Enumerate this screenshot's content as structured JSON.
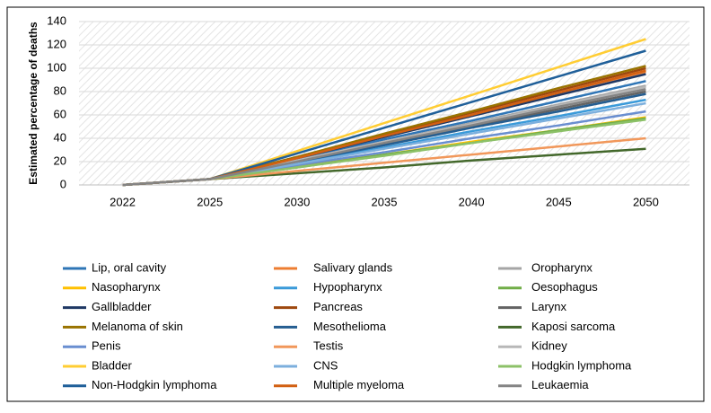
{
  "chart_data": {
    "type": "line",
    "y_label": "Estimated percentage of deaths",
    "categories": [
      "2022",
      "2025",
      "2030",
      "2035",
      "2040",
      "2045",
      "2050"
    ],
    "ylim": [
      0,
      140
    ],
    "yticks": [
      0,
      20,
      40,
      60,
      80,
      100,
      120,
      140
    ],
    "grid": true,
    "legend": "bottom",
    "series": [
      {
        "name": "Lip, oral cavity",
        "color": "#2e75b6",
        "values": [
          0,
          5,
          22,
          39,
          55,
          72,
          89
        ]
      },
      {
        "name": "Salivary glands",
        "color": "#ed7d31",
        "values": [
          0,
          5,
          23,
          42,
          60,
          79,
          97
        ]
      },
      {
        "name": "Oropharynx",
        "color": "#a5a5a5",
        "values": [
          0,
          5,
          21,
          37,
          53,
          69,
          85
        ]
      },
      {
        "name": "Nasopharynx",
        "color": "#ffc000",
        "values": [
          0,
          5,
          16,
          26,
          37,
          47,
          58
        ]
      },
      {
        "name": "Hypopharynx",
        "color": "#3a9ad9",
        "values": [
          0,
          5,
          19,
          32,
          46,
          59,
          73
        ]
      },
      {
        "name": "Oesophagus",
        "color": "#70ad47",
        "values": [
          0,
          5,
          15,
          26,
          36,
          47,
          57
        ]
      },
      {
        "name": "Gallbladder",
        "color": "#1f3864",
        "values": [
          0,
          5,
          23,
          41,
          59,
          77,
          95
        ]
      },
      {
        "name": "Pancreas",
        "color": "#9e480e",
        "values": [
          0,
          5,
          24,
          43,
          62,
          81,
          100
        ]
      },
      {
        "name": "Larynx",
        "color": "#636363",
        "values": [
          0,
          5,
          20,
          35,
          50,
          65,
          80
        ]
      },
      {
        "name": "Melanoma of skin",
        "color": "#997300",
        "values": [
          0,
          5,
          24,
          44,
          63,
          83,
          102
        ]
      },
      {
        "name": "Mesothelioma",
        "color": "#255e91",
        "values": [
          0,
          5,
          20,
          34,
          49,
          63,
          78
        ]
      },
      {
        "name": "Kaposi sarcoma",
        "color": "#43682b",
        "values": [
          0,
          5,
          10,
          15,
          21,
          26,
          31
        ]
      },
      {
        "name": "Penis",
        "color": "#698ed0",
        "values": [
          0,
          5,
          17,
          28,
          40,
          51,
          63
        ]
      },
      {
        "name": "Testis",
        "color": "#f1975a",
        "values": [
          0,
          5,
          12,
          19,
          26,
          33,
          40
        ]
      },
      {
        "name": "Kidney",
        "color": "#b7b7b7",
        "values": [
          0,
          5,
          21,
          37,
          52,
          68,
          84
        ]
      },
      {
        "name": "Bladder",
        "color": "#ffcd33",
        "values": [
          0,
          5,
          29,
          53,
          77,
          101,
          125
        ]
      },
      {
        "name": "CNS",
        "color": "#7cafdd",
        "values": [
          0,
          5,
          18,
          31,
          44,
          57,
          70
        ]
      },
      {
        "name": "Hodgkin lymphoma",
        "color": "#8cc168",
        "values": [
          0,
          5,
          15,
          25,
          36,
          46,
          56
        ]
      },
      {
        "name": "Non-Hodgkin lymphoma",
        "color": "#1f5f99",
        "values": [
          0,
          5,
          27,
          49,
          71,
          93,
          115
        ]
      },
      {
        "name": "Multiple myeloma",
        "color": "#d26012",
        "values": [
          0,
          5,
          23,
          42,
          60,
          79,
          98
        ]
      },
      {
        "name": "Leukaemia",
        "color": "#848484",
        "values": [
          0,
          5,
          20,
          36,
          51,
          67,
          82
        ]
      }
    ]
  }
}
